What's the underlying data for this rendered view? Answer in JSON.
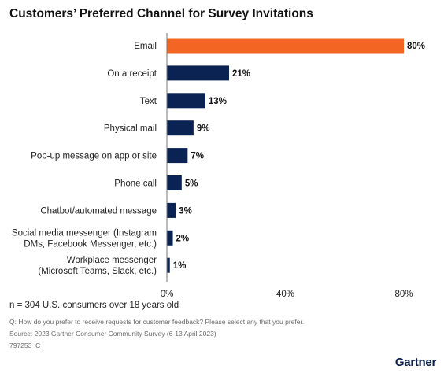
{
  "chart_data": {
    "type": "bar",
    "orientation": "horizontal",
    "title": "Customers’ Preferred Channel for Survey Invitations",
    "categories": [
      [
        "Email"
      ],
      [
        "On a receipt"
      ],
      [
        "Text"
      ],
      [
        "Physical mail"
      ],
      [
        "Pop-up message on app or site"
      ],
      [
        "Phone call"
      ],
      [
        "Chatbot/automated message"
      ],
      [
        "Social media messenger (Instagram",
        "DMs, Facebook Messenger, etc.)"
      ],
      [
        "Workplace messenger",
        "(Microsoft Teams, Slack, etc.)"
      ]
    ],
    "values": [
      80,
      21,
      13,
      9,
      7,
      5,
      3,
      2,
      1
    ],
    "value_labels": [
      "80%",
      "21%",
      "13%",
      "9%",
      "7%",
      "5%",
      "3%",
      "2%",
      "1%"
    ],
    "xlim": [
      0,
      80
    ],
    "xticks": [
      0,
      40,
      80
    ],
    "xtick_labels": [
      "0%",
      "40%",
      "80%"
    ],
    "highlight_index": 0,
    "colors": {
      "highlight": "#f26522",
      "bar": "#0b2353",
      "axis": "#777777",
      "label": "#222222"
    },
    "grid": false
  },
  "footer": {
    "sample": "n = 304 U.S. consumers over 18 years old",
    "question": "Q: How do you prefer to receive requests for customer feedback? Please select any that you prefer.",
    "source": "Source: 2023 Gartner Consumer Community Survey (6-13 April 2023)",
    "id": "797253_C"
  },
  "brand": "Gartner"
}
